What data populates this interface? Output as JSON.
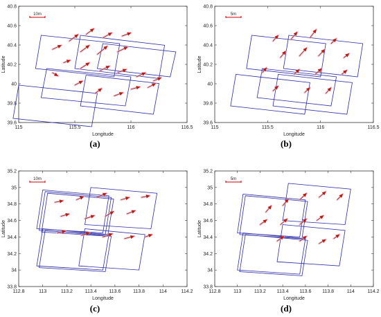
{
  "chart_data": [
    {
      "type": "scatter",
      "caption": "(a)",
      "scale_bar": "10m",
      "xlabel": "Longitude",
      "ylabel": "Latitude",
      "xlim": [
        115,
        116.5
      ],
      "ylim": [
        39.4,
        40.8
      ],
      "xticks": [
        "115",
        "115.5",
        "116",
        "116.5"
      ],
      "yticks": [
        "39.6",
        "39.8",
        "40",
        "40.2",
        "40.4",
        "40.6",
        "40.8"
      ],
      "footprints": [
        {
          "corners": [
            [
              115.2,
              40.45
            ],
            [
              115.9,
              40.35
            ],
            [
              115.85,
              39.95
            ],
            [
              115.15,
              40.05
            ]
          ]
        },
        {
          "corners": [
            [
              115.55,
              40.45
            ],
            [
              116.3,
              40.33
            ],
            [
              116.25,
              39.93
            ],
            [
              115.5,
              40.05
            ]
          ]
        },
        {
          "corners": [
            [
              115.0,
              39.85
            ],
            [
              115.7,
              39.75
            ],
            [
              115.65,
              39.35
            ],
            [
              114.95,
              39.45
            ]
          ]
        },
        {
          "corners": [
            [
              115.6,
              39.97
            ],
            [
              116.25,
              39.87
            ],
            [
              116.2,
              39.5
            ],
            [
              115.55,
              39.6
            ]
          ]
        },
        {
          "corners": [
            [
              115.25,
              40.05
            ],
            [
              116.0,
              39.95
            ],
            [
              115.95,
              39.6
            ],
            [
              115.2,
              39.7
            ]
          ]
        },
        {
          "corners": [
            [
              115.75,
              40.35
            ],
            [
              116.4,
              40.25
            ],
            [
              116.35,
              39.95
            ],
            [
              115.7,
              40.05
            ]
          ]
        }
      ],
      "vectors": [
        {
          "x": 115.3,
          "y": 40.28,
          "u": 0.08,
          "v": 0.05
        },
        {
          "x": 115.45,
          "y": 40.38,
          "u": 0.08,
          "v": 0.08
        },
        {
          "x": 115.6,
          "y": 40.46,
          "u": 0.07,
          "v": 0.07
        },
        {
          "x": 115.75,
          "y": 40.42,
          "u": 0.08,
          "v": 0.06
        },
        {
          "x": 115.92,
          "y": 40.44,
          "u": 0.08,
          "v": 0.04
        },
        {
          "x": 115.55,
          "y": 40.25,
          "u": 0.08,
          "v": 0.08
        },
        {
          "x": 115.7,
          "y": 40.22,
          "u": 0.09,
          "v": 0.1
        },
        {
          "x": 115.88,
          "y": 40.25,
          "u": 0.09,
          "v": 0.06
        },
        {
          "x": 115.4,
          "y": 40.12,
          "u": 0.06,
          "v": 0.03
        },
        {
          "x": 115.55,
          "y": 40.05,
          "u": 0.08,
          "v": 0.07
        },
        {
          "x": 115.72,
          "y": 40.02,
          "u": 0.09,
          "v": 0.06
        },
        {
          "x": 115.88,
          "y": 40.0,
          "u": 0.08,
          "v": 0.04
        },
        {
          "x": 116.05,
          "y": 39.95,
          "u": 0.08,
          "v": 0.05
        },
        {
          "x": 116.2,
          "y": 39.9,
          "u": 0.07,
          "v": 0.04
        },
        {
          "x": 115.3,
          "y": 40.0,
          "u": 0.05,
          "v": -0.04
        },
        {
          "x": 115.5,
          "y": 39.85,
          "u": 0.07,
          "v": 0.05
        },
        {
          "x": 115.68,
          "y": 39.75,
          "u": 0.06,
          "v": 0.06
        },
        {
          "x": 115.85,
          "y": 39.72,
          "u": 0.08,
          "v": 0.04
        },
        {
          "x": 116.0,
          "y": 39.8,
          "u": 0.08,
          "v": 0.03
        },
        {
          "x": 116.15,
          "y": 39.82,
          "u": 0.07,
          "v": 0.05
        }
      ]
    },
    {
      "type": "scatter",
      "caption": "(b)",
      "scale_bar": "5m",
      "xlabel": "Longitude",
      "ylabel": "Latitude",
      "xlim": [
        115,
        116.5
      ],
      "ylim": [
        39.4,
        40.8
      ],
      "xticks": [
        "115",
        "115.5",
        "116",
        "116.5"
      ],
      "yticks": [
        "39.6",
        "39.8",
        "40",
        "40.2",
        "40.4",
        "40.6",
        "40.8"
      ],
      "footprints": [
        {
          "corners": [
            [
              115.35,
              40.45
            ],
            [
              116.05,
              40.35
            ],
            [
              116.0,
              39.95
            ],
            [
              115.3,
              40.05
            ]
          ]
        },
        {
          "corners": [
            [
              115.7,
              40.45
            ],
            [
              116.4,
              40.35
            ],
            [
              116.35,
              39.95
            ],
            [
              115.65,
              40.05
            ]
          ]
        },
        {
          "corners": [
            [
              115.2,
              39.98
            ],
            [
              115.9,
              39.88
            ],
            [
              115.85,
              39.5
            ],
            [
              115.15,
              39.6
            ]
          ]
        },
        {
          "corners": [
            [
              115.6,
              39.98
            ],
            [
              116.3,
              39.88
            ],
            [
              116.25,
              39.5
            ],
            [
              115.55,
              39.6
            ]
          ]
        },
        {
          "corners": [
            [
              115.45,
              40.05
            ],
            [
              116.15,
              39.95
            ],
            [
              116.1,
              39.6
            ],
            [
              115.4,
              39.7
            ]
          ]
        }
      ],
      "vectors": [
        {
          "x": 115.55,
          "y": 40.38,
          "u": 0.05,
          "v": 0.07
        },
        {
          "x": 115.72,
          "y": 40.4,
          "u": 0.06,
          "v": 0.09
        },
        {
          "x": 115.9,
          "y": 40.42,
          "u": 0.06,
          "v": 0.1
        },
        {
          "x": 116.1,
          "y": 40.35,
          "u": 0.05,
          "v": 0.06
        },
        {
          "x": 115.62,
          "y": 40.18,
          "u": 0.05,
          "v": 0.08
        },
        {
          "x": 115.8,
          "y": 40.2,
          "u": 0.07,
          "v": 0.1
        },
        {
          "x": 115.98,
          "y": 40.2,
          "u": 0.06,
          "v": 0.08
        },
        {
          "x": 116.22,
          "y": 40.18,
          "u": 0.05,
          "v": 0.05
        },
        {
          "x": 115.45,
          "y": 40.0,
          "u": 0.04,
          "v": 0.06
        },
        {
          "x": 115.75,
          "y": 39.98,
          "u": 0.05,
          "v": 0.06
        },
        {
          "x": 115.95,
          "y": 39.98,
          "u": 0.06,
          "v": 0.07
        },
        {
          "x": 116.2,
          "y": 39.98,
          "u": 0.05,
          "v": 0.05
        },
        {
          "x": 115.55,
          "y": 39.78,
          "u": 0.05,
          "v": 0.06
        },
        {
          "x": 115.85,
          "y": 39.76,
          "u": 0.05,
          "v": 0.06
        },
        {
          "x": 116.05,
          "y": 39.75,
          "u": 0.05,
          "v": 0.07
        }
      ]
    },
    {
      "type": "scatter",
      "caption": "(c)",
      "scale_bar": "10m",
      "xlabel": "Longitude",
      "ylabel": "Latitude",
      "xlim": [
        112.8,
        114.2
      ],
      "ylim": [
        33.8,
        35.2
      ],
      "xticks": [
        "112.8",
        "113",
        "113.2",
        "113.4",
        "113.6",
        "113.8",
        "114",
        "114.2"
      ],
      "yticks": [
        "33.8",
        "34",
        "34.2",
        "34.4",
        "34.6",
        "34.8",
        "35",
        "35.2"
      ],
      "footprints": [
        {
          "corners": [
            [
              113.0,
              34.97
            ],
            [
              113.55,
              34.9
            ],
            [
              113.5,
              34.45
            ],
            [
              112.95,
              34.5
            ]
          ]
        },
        {
          "corners": [
            [
              113.02,
              34.95
            ],
            [
              113.57,
              34.88
            ],
            [
              113.52,
              34.43
            ],
            [
              112.97,
              34.48
            ]
          ]
        },
        {
          "corners": [
            [
              113.04,
              34.93
            ],
            [
              113.59,
              34.86
            ],
            [
              113.54,
              34.41
            ],
            [
              112.99,
              34.46
            ]
          ]
        },
        {
          "corners": [
            [
              113.4,
              35.0
            ],
            [
              113.95,
              34.93
            ],
            [
              113.9,
              34.5
            ],
            [
              113.35,
              34.55
            ]
          ]
        },
        {
          "corners": [
            [
              113.0,
              34.5
            ],
            [
              113.55,
              34.43
            ],
            [
              113.5,
              34.0
            ],
            [
              112.95,
              34.05
            ]
          ]
        },
        {
          "corners": [
            [
              113.02,
              34.48
            ],
            [
              113.57,
              34.41
            ],
            [
              113.52,
              33.98
            ],
            [
              112.97,
              34.03
            ]
          ]
        },
        {
          "corners": [
            [
              113.35,
              34.5
            ],
            [
              113.85,
              34.43
            ],
            [
              113.8,
              34.0
            ],
            [
              113.3,
              34.05
            ]
          ]
        }
      ],
      "vectors": [
        {
          "x": 113.1,
          "y": 34.82,
          "u": 0.07,
          "v": 0.02
        },
        {
          "x": 113.28,
          "y": 34.85,
          "u": 0.06,
          "v": 0.04
        },
        {
          "x": 113.45,
          "y": 34.88,
          "u": 0.08,
          "v": 0.05
        },
        {
          "x": 113.65,
          "y": 34.85,
          "u": 0.07,
          "v": 0.03
        },
        {
          "x": 113.82,
          "y": 34.88,
          "u": 0.07,
          "v": 0.02
        },
        {
          "x": 113.15,
          "y": 34.65,
          "u": 0.07,
          "v": 0.03
        },
        {
          "x": 113.35,
          "y": 34.62,
          "u": 0.08,
          "v": 0.04
        },
        {
          "x": 113.52,
          "y": 34.65,
          "u": 0.07,
          "v": 0.06
        },
        {
          "x": 113.7,
          "y": 34.68,
          "u": 0.07,
          "v": 0.04
        },
        {
          "x": 113.12,
          "y": 34.45,
          "u": 0.07,
          "v": 0.02
        },
        {
          "x": 113.32,
          "y": 34.42,
          "u": 0.07,
          "v": 0.03
        },
        {
          "x": 113.5,
          "y": 34.4,
          "u": 0.08,
          "v": 0.04
        },
        {
          "x": 113.68,
          "y": 34.38,
          "u": 0.08,
          "v": 0.03
        },
        {
          "x": 113.85,
          "y": 34.4,
          "u": 0.06,
          "v": 0.03
        }
      ]
    },
    {
      "type": "scatter",
      "caption": "(d)",
      "scale_bar": "5m",
      "xlabel": "Longitude",
      "ylabel": "Latitude",
      "xlim": [
        112.8,
        114.2
      ],
      "ylim": [
        33.8,
        35.2
      ],
      "xticks": [
        "112.8",
        "113",
        "113.2",
        "113.4",
        "113.6",
        "113.8",
        "114",
        "114.2"
      ],
      "yticks": [
        "33.8",
        "34",
        "34.2",
        "34.4",
        "34.6",
        "34.8",
        "35",
        "35.2"
      ],
      "footprints": [
        {
          "corners": [
            [
              113.05,
              34.92
            ],
            [
              113.6,
              34.85
            ],
            [
              113.55,
              34.4
            ],
            [
              113.0,
              34.45
            ]
          ]
        },
        {
          "corners": [
            [
              113.07,
              34.9
            ],
            [
              113.62,
              34.83
            ],
            [
              113.57,
              34.38
            ],
            [
              113.02,
              34.43
            ]
          ]
        },
        {
          "corners": [
            [
              113.45,
              35.05
            ],
            [
              114.0,
              34.98
            ],
            [
              113.95,
              34.55
            ],
            [
              113.4,
              34.6
            ]
          ]
        },
        {
          "corners": [
            [
              113.05,
              34.45
            ],
            [
              113.6,
              34.38
            ],
            [
              113.55,
              33.95
            ],
            [
              113.0,
              34.0
            ]
          ]
        },
        {
          "corners": [
            [
              113.07,
              34.43
            ],
            [
              113.62,
              34.36
            ],
            [
              113.57,
              33.93
            ],
            [
              113.02,
              33.98
            ]
          ]
        },
        {
          "corners": [
            [
              113.4,
              34.55
            ],
            [
              113.95,
              34.48
            ],
            [
              113.9,
              34.05
            ],
            [
              113.35,
              34.1
            ]
          ]
        }
      ],
      "vectors": [
        {
          "x": 113.25,
          "y": 34.7,
          "u": 0.05,
          "v": 0.08
        },
        {
          "x": 113.4,
          "y": 34.78,
          "u": 0.05,
          "v": 0.08
        },
        {
          "x": 113.55,
          "y": 34.85,
          "u": 0.06,
          "v": 0.08
        },
        {
          "x": 113.72,
          "y": 34.88,
          "u": 0.06,
          "v": 0.07
        },
        {
          "x": 113.88,
          "y": 34.85,
          "u": 0.05,
          "v": 0.07
        },
        {
          "x": 113.2,
          "y": 34.55,
          "u": 0.06,
          "v": 0.06
        },
        {
          "x": 113.38,
          "y": 34.55,
          "u": 0.06,
          "v": 0.07
        },
        {
          "x": 113.55,
          "y": 34.55,
          "u": 0.06,
          "v": 0.07
        },
        {
          "x": 113.7,
          "y": 34.6,
          "u": 0.06,
          "v": 0.06
        },
        {
          "x": 113.35,
          "y": 34.35,
          "u": 0.06,
          "v": 0.06
        },
        {
          "x": 113.55,
          "y": 34.35,
          "u": 0.06,
          "v": 0.06
        },
        {
          "x": 113.72,
          "y": 34.32,
          "u": 0.06,
          "v": 0.05
        },
        {
          "x": 113.85,
          "y": 34.38,
          "u": 0.05,
          "v": 0.05
        }
      ]
    }
  ]
}
